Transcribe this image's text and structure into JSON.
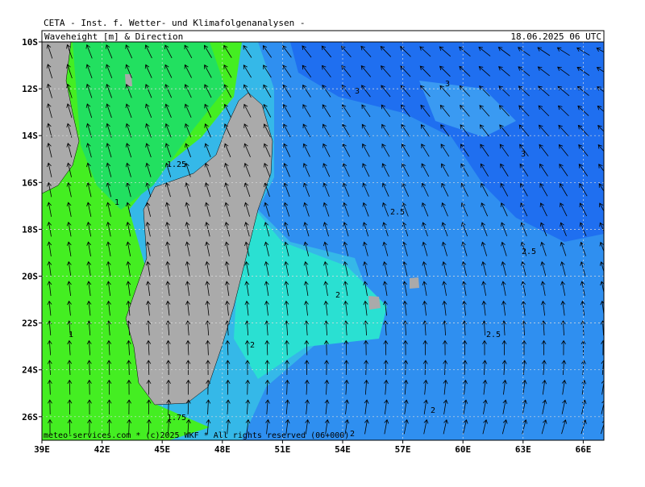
{
  "header": {
    "title": "CETA - Inst. f. Wetter- und Klimafolgenanalysen -",
    "variable": "Waveheight [m] & Direction",
    "valid_time": "18.06.2025 06 UTC"
  },
  "footer": "meteo-services.com * (c)2025 WKF * All rights reserved (06+000)",
  "latitude_labels": [
    "10S",
    "12S",
    "14S",
    "16S",
    "18S",
    "20S",
    "22S",
    "24S",
    "26S"
  ],
  "longitude_labels": [
    "39E",
    "42E",
    "45E",
    "48E",
    "51E",
    "54E",
    "57E",
    "60E",
    "63E",
    "66E"
  ],
  "contour_labels": [
    "3",
    "3",
    "3",
    "1.25",
    "1",
    "2.5",
    "2.5",
    "2",
    "2.5",
    "1",
    "2",
    "1.75",
    "2",
    "2"
  ]
}
